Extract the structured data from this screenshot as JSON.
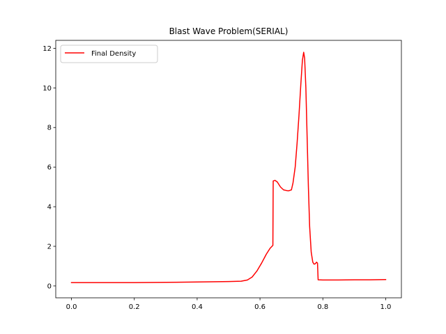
{
  "chart_data": {
    "type": "line",
    "title": "Blast Wave Problem(SERIAL)",
    "xlabel": "",
    "ylabel": "",
    "xlim": [
      -0.05,
      1.05
    ],
    "ylim": [
      -0.6,
      12.4
    ],
    "xticks": [
      0.0,
      0.2,
      0.4,
      0.6,
      0.8,
      1.0
    ],
    "xtick_labels": [
      "0.0",
      "0.2",
      "0.4",
      "0.6",
      "0.8",
      "1.0"
    ],
    "yticks": [
      0,
      2,
      4,
      6,
      8,
      10,
      12
    ],
    "ytick_labels": [
      "0",
      "2",
      "4",
      "6",
      "8",
      "10",
      "12"
    ],
    "grid": false,
    "legend_position": "top-left",
    "series": [
      {
        "name": "Final Density",
        "color": "#ff0000",
        "points": [
          [
            0.0,
            0.17
          ],
          [
            0.1,
            0.17
          ],
          [
            0.2,
            0.17
          ],
          [
            0.3,
            0.18
          ],
          [
            0.4,
            0.2
          ],
          [
            0.5,
            0.22
          ],
          [
            0.54,
            0.24
          ],
          [
            0.56,
            0.3
          ],
          [
            0.575,
            0.45
          ],
          [
            0.59,
            0.75
          ],
          [
            0.605,
            1.15
          ],
          [
            0.62,
            1.6
          ],
          [
            0.632,
            1.9
          ],
          [
            0.641,
            2.05
          ],
          [
            0.642,
            5.3
          ],
          [
            0.648,
            5.33
          ],
          [
            0.655,
            5.25
          ],
          [
            0.665,
            5.0
          ],
          [
            0.675,
            4.85
          ],
          [
            0.69,
            4.8
          ],
          [
            0.7,
            4.85
          ],
          [
            0.705,
            5.2
          ],
          [
            0.712,
            6.0
          ],
          [
            0.718,
            7.2
          ],
          [
            0.724,
            8.6
          ],
          [
            0.73,
            10.2
          ],
          [
            0.735,
            11.4
          ],
          [
            0.739,
            11.8
          ],
          [
            0.742,
            11.5
          ],
          [
            0.746,
            10.0
          ],
          [
            0.75,
            7.5
          ],
          [
            0.754,
            5.0
          ],
          [
            0.758,
            3.0
          ],
          [
            0.763,
            1.7
          ],
          [
            0.768,
            1.2
          ],
          [
            0.772,
            1.1
          ],
          [
            0.776,
            1.12
          ],
          [
            0.78,
            1.2
          ],
          [
            0.783,
            1.15
          ],
          [
            0.785,
            0.31
          ],
          [
            0.8,
            0.3
          ],
          [
            0.85,
            0.3
          ],
          [
            0.9,
            0.31
          ],
          [
            0.95,
            0.31
          ],
          [
            1.0,
            0.32
          ]
        ]
      }
    ]
  }
}
